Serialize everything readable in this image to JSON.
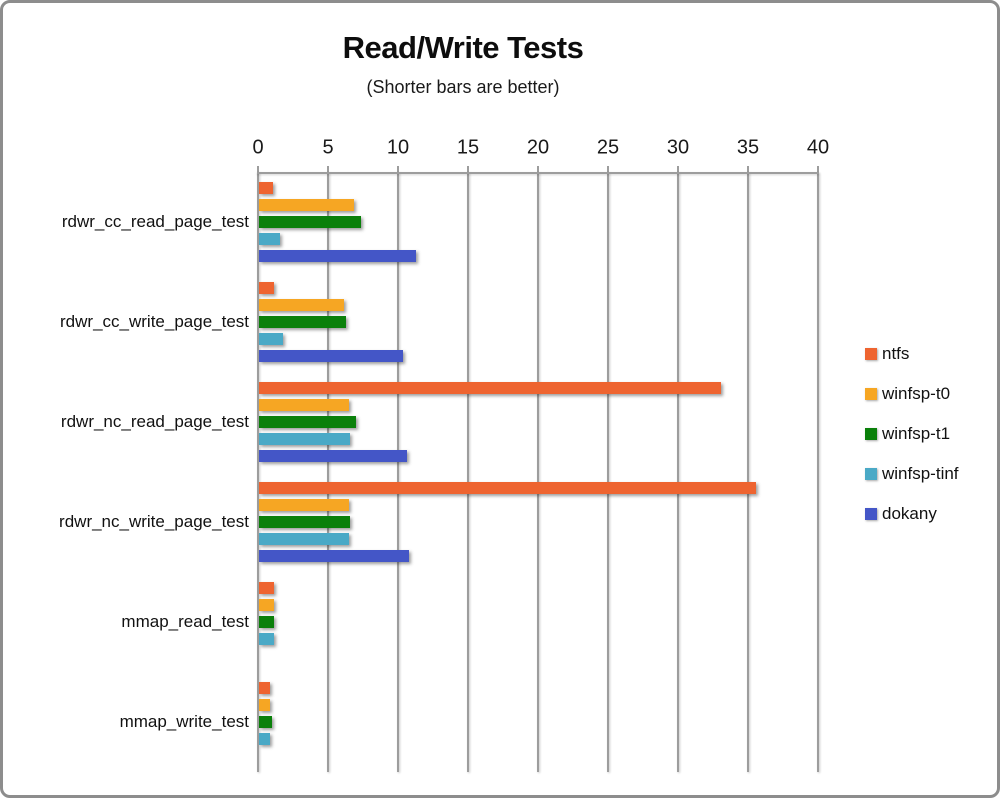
{
  "chart_data": {
    "type": "bar",
    "orientation": "horizontal",
    "title": "Read/Write Tests",
    "subtitle": "(Shorter bars are better)",
    "categories": [
      "rdwr_cc_read_page_test",
      "rdwr_cc_write_page_test",
      "rdwr_nc_read_page_test",
      "rdwr_nc_write_page_test",
      "mmap_read_test",
      "mmap_write_test"
    ],
    "series": [
      {
        "name": "ntfs",
        "color": "#ee6430",
        "values": [
          1.0,
          1.1,
          33.0,
          35.5,
          1.1,
          0.8
        ]
      },
      {
        "name": "winfsp-t0",
        "color": "#f6a623",
        "values": [
          6.8,
          6.1,
          6.4,
          6.4,
          1.05,
          0.8
        ]
      },
      {
        "name": "winfsp-t1",
        "color": "#0a800a",
        "values": [
          7.3,
          6.2,
          6.9,
          6.5,
          1.05,
          0.9
        ]
      },
      {
        "name": "winfsp-tinf",
        "color": "#4aa9c6",
        "values": [
          1.5,
          1.7,
          6.5,
          6.4,
          1.05,
          0.75
        ]
      },
      {
        "name": "dokany",
        "color": "#4456c7",
        "values": [
          11.2,
          10.3,
          10.6,
          10.7,
          0,
          0
        ]
      }
    ],
    "xlim": [
      0,
      40
    ],
    "xticks": [
      0,
      5,
      10,
      15,
      20,
      25,
      30,
      35,
      40
    ],
    "grid": true,
    "legend_position": "right",
    "gridline_color": "#9d9d9d"
  }
}
